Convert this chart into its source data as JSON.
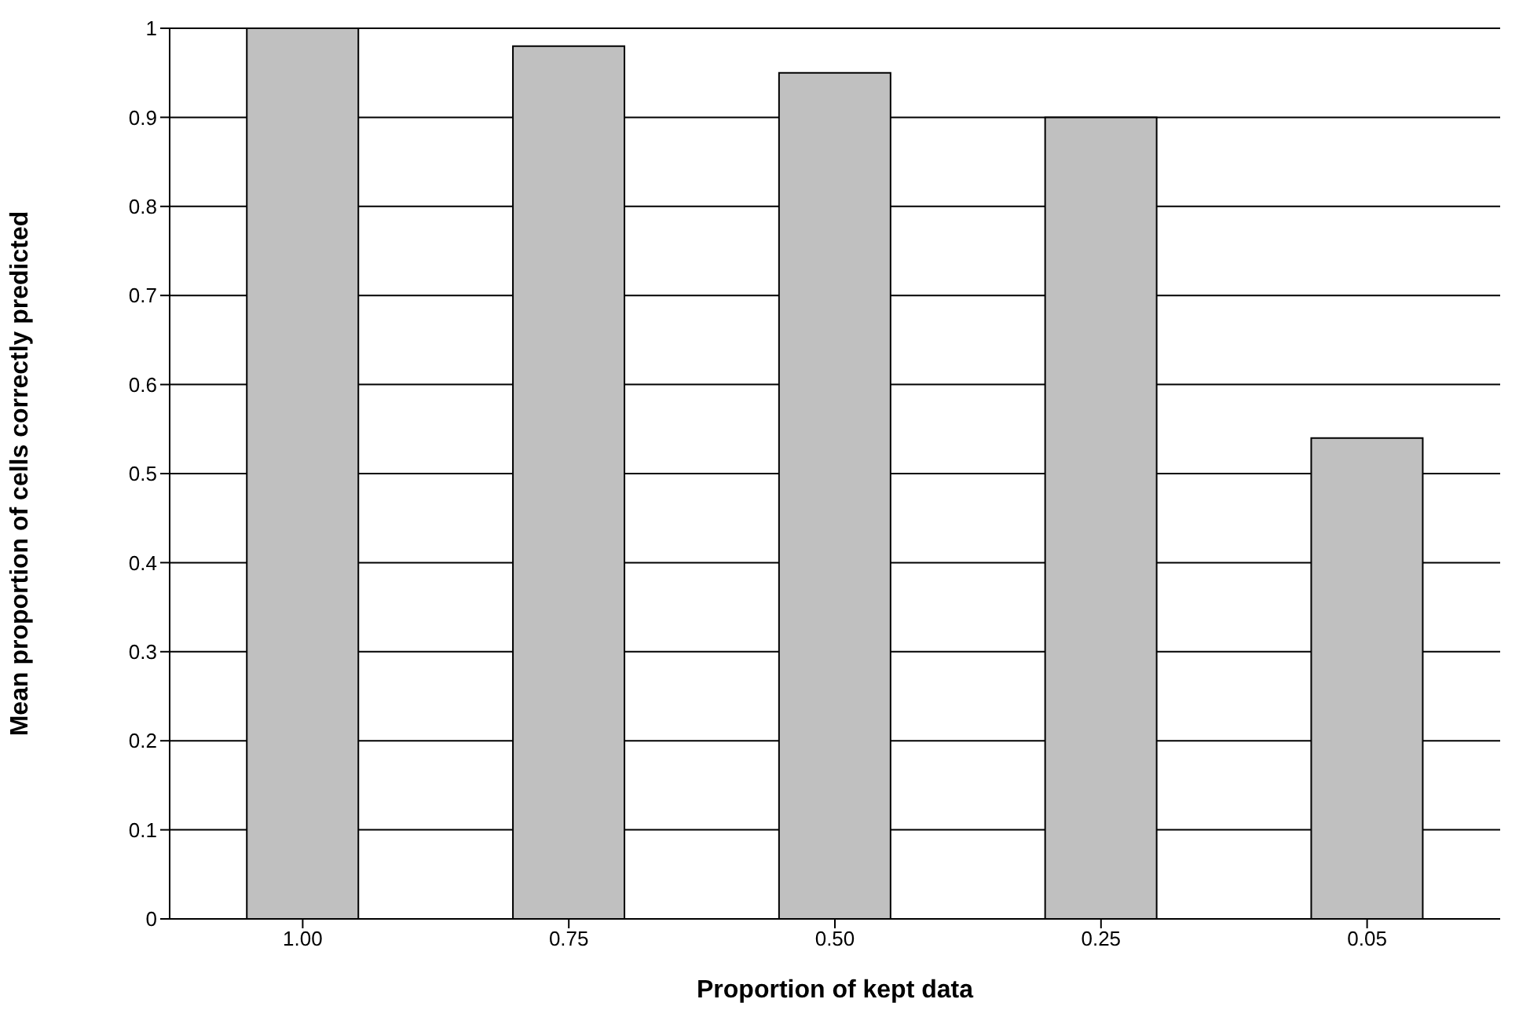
{
  "chart_data": {
    "type": "bar",
    "xlabel": "Proportion of kept data",
    "ylabel": "Mean proportion of cells correctly predicted",
    "categories": [
      "1.00",
      "0.75",
      "0.50",
      "0.25",
      "0.05"
    ],
    "values": [
      1.0,
      0.98,
      0.95,
      0.9,
      0.54
    ],
    "color": "#c0c0c0",
    "ylim": [
      0,
      1
    ],
    "yticks": [
      0,
      0.1,
      0.2,
      0.3,
      0.4,
      0.5,
      0.6,
      0.7,
      0.8,
      0.9,
      1
    ],
    "grid": "y",
    "legend": false
  }
}
